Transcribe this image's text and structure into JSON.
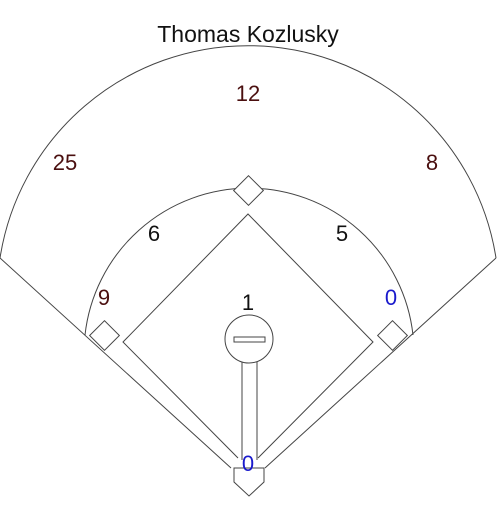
{
  "title": "Thomas Kozlusky",
  "colors": {
    "line": "#444444",
    "dark_red": "#4a0f0f",
    "black": "#111111",
    "blue": "#1a1acc"
  },
  "positions": {
    "center_field": "12",
    "left_field": "25",
    "right_field": "8",
    "shortstop": "6",
    "second_base": "5",
    "third_base": "9",
    "first_base": "0",
    "pitcher": "1",
    "catcher": "0"
  }
}
